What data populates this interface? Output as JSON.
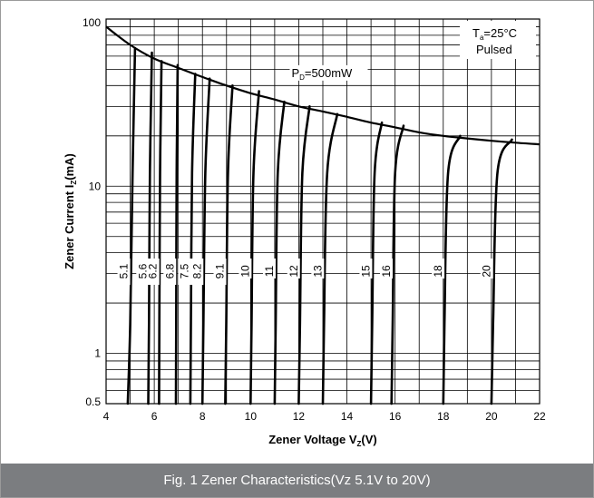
{
  "caption": "Fig. 1 Zener Characteristics(Vz 5.1V to 20V)",
  "chart_data": {
    "type": "line",
    "title": "",
    "xlabel": {
      "main": "Zener Voltage  V",
      "sub": "Z",
      "unit": "(V)"
    },
    "ylabel": {
      "main": "Zener Current  I",
      "sub": "Z",
      "unit": "(mA)"
    },
    "xlim": [
      4,
      22
    ],
    "ylim": [
      0.5,
      100
    ],
    "yscale": "log",
    "x_ticks": [
      "4",
      "6",
      "8",
      "10",
      "12",
      "14",
      "16",
      "18",
      "20",
      "22"
    ],
    "y_ticks": [
      {
        "value": 100,
        "label": "100"
      },
      {
        "value": 10,
        "label": "10"
      },
      {
        "value": 1,
        "label": "1"
      },
      {
        "value": 0.5,
        "label": "0.5"
      }
    ],
    "grid": true,
    "annotations": {
      "conditions_line1": {
        "main": "T",
        "sub": "a",
        "rest": "=25°C"
      },
      "conditions_line2": "Pulsed",
      "power_limit": {
        "main": "P",
        "sub": "D",
        "rest": "=500mW"
      }
    },
    "power_limit_curve": [
      {
        "x": 4.0,
        "y": 90
      },
      {
        "x": 5.0,
        "y": 70
      },
      {
        "x": 6.0,
        "y": 58
      },
      {
        "x": 7.0,
        "y": 51
      },
      {
        "x": 8.0,
        "y": 45
      },
      {
        "x": 9.0,
        "y": 40
      },
      {
        "x": 10.0,
        "y": 36
      },
      {
        "x": 11.0,
        "y": 33
      },
      {
        "x": 12.0,
        "y": 30
      },
      {
        "x": 13.0,
        "y": 28
      },
      {
        "x": 14.0,
        "y": 26
      },
      {
        "x": 15.0,
        "y": 24
      },
      {
        "x": 16.0,
        "y": 22.5
      },
      {
        "x": 17.0,
        "y": 21
      },
      {
        "x": 18.0,
        "y": 20
      },
      {
        "x": 19.0,
        "y": 19.3
      },
      {
        "x": 20.0,
        "y": 18.7
      },
      {
        "x": 21.0,
        "y": 18.2
      },
      {
        "x": 22.0,
        "y": 17.8
      }
    ],
    "series": [
      {
        "name": "5.1",
        "points": [
          [
            4.9,
            0.5
          ],
          [
            5.0,
            1.5
          ],
          [
            5.1,
            12
          ],
          [
            5.2,
            67
          ]
        ]
      },
      {
        "name": "5.6",
        "points": [
          [
            5.75,
            0.5
          ],
          [
            5.78,
            1.5
          ],
          [
            5.82,
            12
          ],
          [
            5.9,
            63
          ]
        ]
      },
      {
        "name": "6.2",
        "points": [
          [
            6.2,
            0.5
          ],
          [
            6.21,
            1.5
          ],
          [
            6.24,
            12
          ],
          [
            6.3,
            56
          ]
        ]
      },
      {
        "name": "6.8",
        "points": [
          [
            6.9,
            0.5
          ],
          [
            6.91,
            1.5
          ],
          [
            6.93,
            12
          ],
          [
            6.97,
            53
          ]
        ]
      },
      {
        "name": "7.5",
        "points": [
          [
            7.5,
            0.5
          ],
          [
            7.52,
            1.5
          ],
          [
            7.57,
            12
          ],
          [
            7.7,
            47
          ]
        ]
      },
      {
        "name": "8.2",
        "points": [
          [
            8.0,
            0.5
          ],
          [
            8.04,
            1.5
          ],
          [
            8.12,
            12
          ],
          [
            8.3,
            44
          ]
        ]
      },
      {
        "name": "9.1",
        "points": [
          [
            8.95,
            0.5
          ],
          [
            8.99,
            1.5
          ],
          [
            9.06,
            12
          ],
          [
            9.25,
            40
          ]
        ]
      },
      {
        "name": "10",
        "points": [
          [
            10.0,
            0.5
          ],
          [
            10.04,
            1.5
          ],
          [
            10.12,
            12
          ],
          [
            10.35,
            37
          ]
        ]
      },
      {
        "name": "11",
        "points": [
          [
            11.0,
            0.5
          ],
          [
            11.04,
            1.5
          ],
          [
            11.13,
            12
          ],
          [
            11.4,
            32
          ]
        ]
      },
      {
        "name": "12",
        "points": [
          [
            12.0,
            0.5
          ],
          [
            12.05,
            1.5
          ],
          [
            12.15,
            12
          ],
          [
            12.45,
            30
          ]
        ]
      },
      {
        "name": "13",
        "points": [
          [
            13.0,
            0.5
          ],
          [
            13.05,
            1.5
          ],
          [
            13.18,
            12
          ],
          [
            13.6,
            27
          ]
        ]
      },
      {
        "name": "15",
        "points": [
          [
            15.0,
            0.5
          ],
          [
            15.05,
            1.5
          ],
          [
            15.15,
            12
          ],
          [
            15.45,
            24
          ]
        ]
      },
      {
        "name": "16",
        "points": [
          [
            15.85,
            0.5
          ],
          [
            15.9,
            1.5
          ],
          [
            16.0,
            12
          ],
          [
            16.35,
            23
          ]
        ]
      },
      {
        "name": "18",
        "points": [
          [
            18.0,
            0.5
          ],
          [
            18.05,
            1.5
          ],
          [
            18.2,
            12
          ],
          [
            18.7,
            20
          ]
        ]
      },
      {
        "name": "20",
        "points": [
          [
            20.0,
            0.5
          ],
          [
            20.07,
            1.5
          ],
          [
            20.25,
            12
          ],
          [
            20.85,
            19
          ]
        ]
      }
    ],
    "series_label_y": 3.1
  }
}
